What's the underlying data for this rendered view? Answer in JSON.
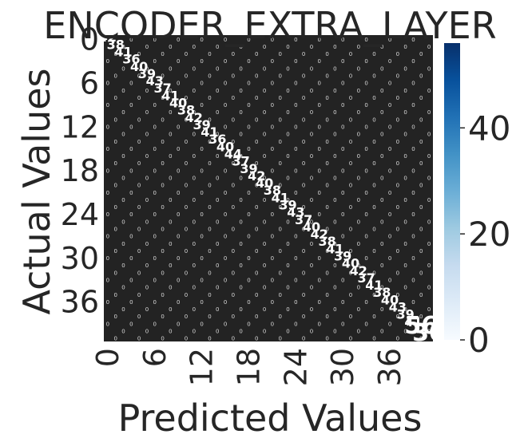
{
  "chart_data": {
    "type": "heatmap",
    "title": "ENCODER_EXTRA_LAYER",
    "xlabel": "Predicted Values",
    "ylabel": "Actual Values",
    "x_tick_labels": [
      "0",
      "6",
      "12",
      "18",
      "24",
      "30",
      "36"
    ],
    "y_tick_labels": [
      "0",
      "6",
      "12",
      "18",
      "24",
      "30",
      "36"
    ],
    "n_classes": 42,
    "diagonal_values": [
      42,
      38,
      41,
      36,
      40,
      39,
      43,
      37,
      41,
      40,
      38,
      42,
      39,
      41,
      36,
      40,
      44,
      37,
      39,
      42,
      40,
      38,
      41,
      39,
      43,
      37,
      40,
      42,
      38,
      41,
      39,
      40,
      42,
      37,
      41,
      38,
      40,
      43,
      39,
      41,
      56,
      30
    ],
    "off_diagonal_value": 0,
    "annotations": "cell counts shown in each cell",
    "colormap": "Blues",
    "colorbar": {
      "min": 0,
      "max": 56,
      "ticks": [
        0,
        20,
        40
      ]
    },
    "colors": {
      "low": "#f7fbff",
      "high": "#08306b",
      "cell_dark": "#232323",
      "annotation": "#ffffff"
    }
  }
}
